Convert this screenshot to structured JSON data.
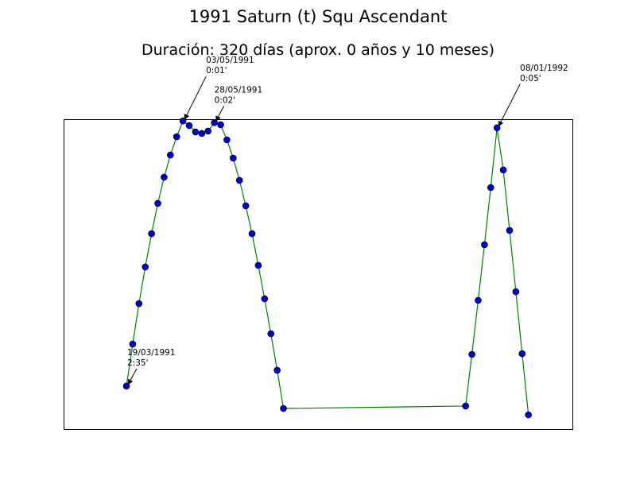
{
  "chart_data": {
    "type": "line",
    "title": "1991 Saturn (t) Squ Ascendant",
    "subtitle": "Duración: 320 días (aprox. 0 años y 10 meses)",
    "x": [
      0,
      5,
      10,
      15,
      20,
      25,
      30,
      35,
      40,
      45,
      50,
      55,
      60,
      65,
      70,
      75,
      80,
      85,
      90,
      95,
      100,
      105,
      110,
      115,
      120,
      125,
      270,
      275,
      280,
      285,
      290,
      295,
      300,
      305,
      310,
      315,
      320
    ],
    "series": [
      {
        "color": "#008000",
        "marker_color": "#0000cc",
        "values": [
          155,
          130.6,
          107.1,
          85.8,
          66.5,
          48.9,
          33.7,
          20.8,
          10.2,
          1,
          3.7,
          7.4,
          8.3,
          6.9,
          2,
          3.2,
          12,
          22.6,
          35.5,
          50.3,
          66.5,
          84.9,
          104.3,
          124.6,
          145.8,
          168,
          166.6,
          136.6,
          105.2,
          72.9,
          39.7,
          5,
          29.5,
          64.6,
          100.2,
          136.2,
          171.7
        ]
      }
    ],
    "xlim": [
      -50,
      355
    ],
    "ylim": [
      0,
      180
    ],
    "y_inverted": true,
    "annotations": [
      {
        "x": 0,
        "date": "19/03/1991",
        "label": "2:35'"
      },
      {
        "x": 45,
        "date": "03/05/1991",
        "label": "0:01'"
      },
      {
        "x": 70,
        "date": "28/05/1991",
        "label": "0:02'"
      },
      {
        "x": 295,
        "date": "08/01/1992",
        "label": "0:05'"
      }
    ]
  }
}
